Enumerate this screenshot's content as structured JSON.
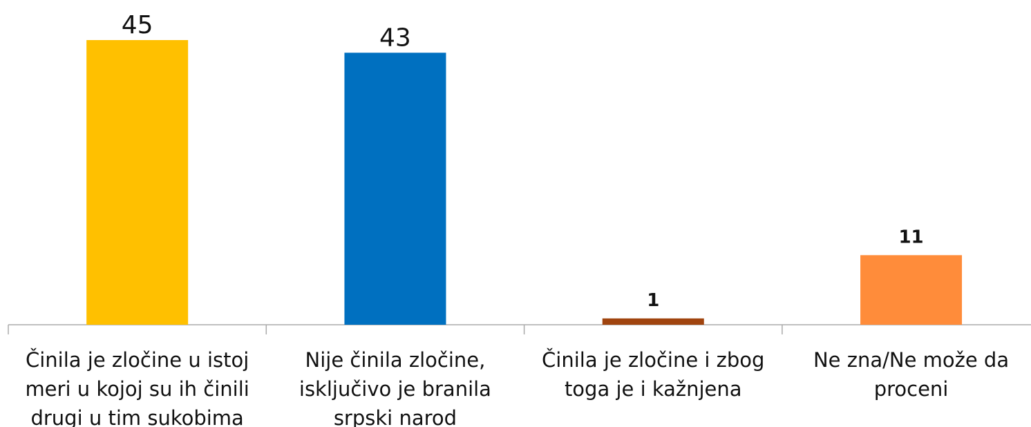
{
  "chart_data": {
    "type": "bar",
    "categories": [
      "Činila je zločine u istoj meri u kojoj su ih činili drugi u tim sukobima",
      "Nije činila zločine, isključivo je branila srpski narod",
      "Činila je zločine i zbog toga je i kažnjena",
      "Ne zna/Ne može da proceni"
    ],
    "values": [
      45,
      43,
      1,
      11
    ],
    "colors": [
      "#FFC000",
      "#0070C0",
      "#A0440F",
      "#FF8C3A"
    ],
    "ylim": [
      0,
      45
    ]
  }
}
